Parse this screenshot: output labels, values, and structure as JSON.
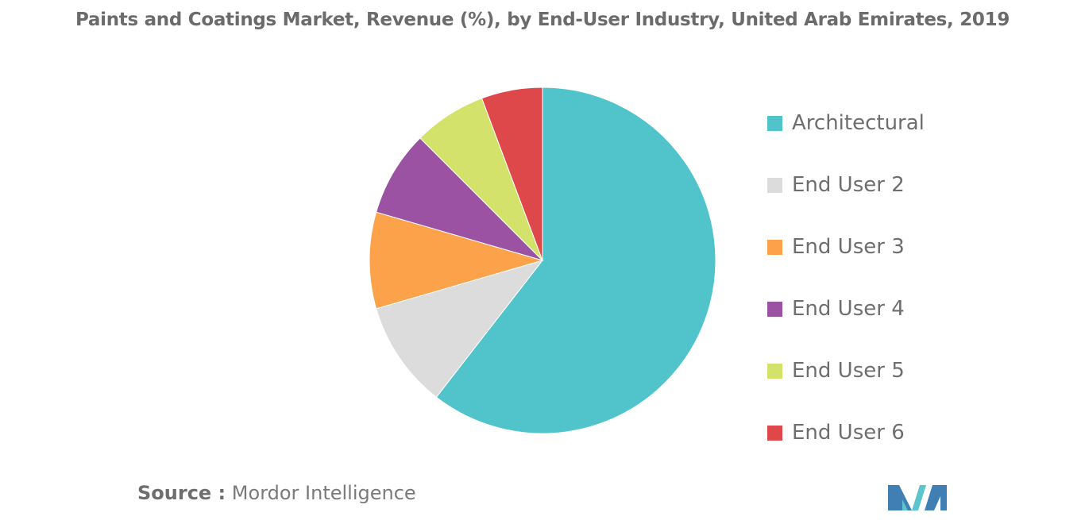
{
  "chart_data": {
    "type": "pie",
    "title": "Paints and Coatings Market, Revenue (%), by End-User Industry, United Arab Emirates, 2019",
    "slices": [
      {
        "label": "Architectural",
        "value": 60.5,
        "color": "#50c4ca"
      },
      {
        "label": "End User 2",
        "value": 10.0,
        "color": "#dcdcdc"
      },
      {
        "label": "End User 3",
        "value": 9.0,
        "color": "#fba24b"
      },
      {
        "label": "End User 4",
        "value": 8.0,
        "color": "#9b52a2"
      },
      {
        "label": "End User 5",
        "value": 6.8,
        "color": "#d3e26a"
      },
      {
        "label": "End User 6",
        "value": 5.7,
        "color": "#de484a"
      }
    ],
    "legend_position": "right"
  },
  "source": {
    "prefix": "Source :",
    "text": "Mordor Intelligence"
  },
  "logo": {
    "colors": [
      "#3f7fb3",
      "#5cc4cd"
    ]
  }
}
